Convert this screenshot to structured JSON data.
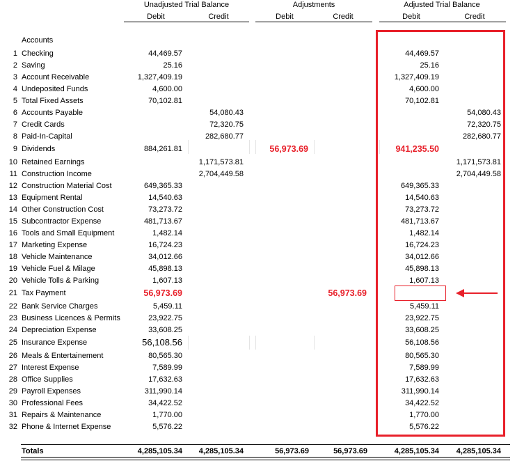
{
  "headers": {
    "unadjusted": "Unadjusted Trial Balance",
    "adjustments": "Adjustments",
    "adjusted": "Adjusted Trial Balance",
    "debit": "Debit",
    "credit": "Credit"
  },
  "accounts_label": "Accounts",
  "rows": [
    {
      "no": "1",
      "name": "Checking",
      "ud": "44,469.57",
      "uc": "",
      "adj_d": "",
      "adj_c": "",
      "ad": "44,469.57",
      "ac": ""
    },
    {
      "no": "2",
      "name": "Saving",
      "ud": "25.16",
      "uc": "",
      "adj_d": "",
      "adj_c": "",
      "ad": "25.16",
      "ac": ""
    },
    {
      "no": "3",
      "name": "Account Receivable",
      "ud": "1,327,409.19",
      "uc": "",
      "adj_d": "",
      "adj_c": "",
      "ad": "1,327,409.19",
      "ac": ""
    },
    {
      "no": "4",
      "name": "Undeposited Funds",
      "ud": "4,600.00",
      "uc": "",
      "adj_d": "",
      "adj_c": "",
      "ad": "4,600.00",
      "ac": ""
    },
    {
      "no": "5",
      "name": "Total Fixed Assets",
      "ud": "70,102.81",
      "uc": "",
      "adj_d": "",
      "adj_c": "",
      "ad": "70,102.81",
      "ac": ""
    },
    {
      "no": "6",
      "name": "Accounts Payable",
      "ud": "",
      "uc": "54,080.43",
      "adj_d": "",
      "adj_c": "",
      "ad": "",
      "ac": "54,080.43"
    },
    {
      "no": "7",
      "name": "Credit Cards",
      "ud": "",
      "uc": "72,320.75",
      "adj_d": "",
      "adj_c": "",
      "ad": "",
      "ac": "72,320.75"
    },
    {
      "no": "8",
      "name": "Paid-In-Capital",
      "ud": "",
      "uc": "282,680.77",
      "adj_d": "",
      "adj_c": "",
      "ad": "",
      "ac": "282,680.77"
    },
    {
      "no": "9",
      "name": "Dividends",
      "ud": "884,261.81",
      "uc": "",
      "adj_d": "56,973.69",
      "adj_c": "",
      "ad": "941,235.50",
      "ac": ""
    },
    {
      "no": "10",
      "name": "Retained Earnings",
      "ud": "",
      "uc": "1,171,573.81",
      "adj_d": "",
      "adj_c": "",
      "ad": "",
      "ac": "1,171,573.81"
    },
    {
      "no": "11",
      "name": "Construction Income",
      "ud": "",
      "uc": "2,704,449.58",
      "adj_d": "",
      "adj_c": "",
      "ad": "",
      "ac": "2,704,449.58"
    },
    {
      "no": "12",
      "name": "Construction Material Cost",
      "ud": "649,365.33",
      "uc": "",
      "adj_d": "",
      "adj_c": "",
      "ad": "649,365.33",
      "ac": ""
    },
    {
      "no": "13",
      "name": "Equipment Rental",
      "ud": "14,540.63",
      "uc": "",
      "adj_d": "",
      "adj_c": "",
      "ad": "14,540.63",
      "ac": ""
    },
    {
      "no": "14",
      "name": "Other Construction Cost",
      "ud": "73,273.72",
      "uc": "",
      "adj_d": "",
      "adj_c": "",
      "ad": "73,273.72",
      "ac": ""
    },
    {
      "no": "15",
      "name": "Subcontractor Expense",
      "ud": "481,713.67",
      "uc": "",
      "adj_d": "",
      "adj_c": "",
      "ad": "481,713.67",
      "ac": ""
    },
    {
      "no": "16",
      "name": "Tools and Small Equipment",
      "ud": "1,482.14",
      "uc": "",
      "adj_d": "",
      "adj_c": "",
      "ad": "1,482.14",
      "ac": ""
    },
    {
      "no": "17",
      "name": "Marketing Expense",
      "ud": "16,724.23",
      "uc": "",
      "adj_d": "",
      "adj_c": "",
      "ad": "16,724.23",
      "ac": ""
    },
    {
      "no": "18",
      "name": "Vehicle Maintenance",
      "ud": "34,012.66",
      "uc": "",
      "adj_d": "",
      "adj_c": "",
      "ad": "34,012.66",
      "ac": ""
    },
    {
      "no": "19",
      "name": "Vehicle Fuel & Milage",
      "ud": "45,898.13",
      "uc": "",
      "adj_d": "",
      "adj_c": "",
      "ad": "45,898.13",
      "ac": ""
    },
    {
      "no": "20",
      "name": "Vehicle Tolls & Parking",
      "ud": "1,607.13",
      "uc": "",
      "adj_d": "",
      "adj_c": "",
      "ad": "1,607.13",
      "ac": ""
    },
    {
      "no": "21",
      "name": "Tax Payment",
      "ud": "56,973.69",
      "uc": "",
      "adj_d": "",
      "adj_c": "56,973.69",
      "ad": "",
      "ac": ""
    },
    {
      "no": "22",
      "name": "Bank Service Charges",
      "ud": "5,459.11",
      "uc": "",
      "adj_d": "",
      "adj_c": "",
      "ad": "5,459.11",
      "ac": ""
    },
    {
      "no": "23",
      "name": "Business Licences & Permits",
      "ud": "23,922.75",
      "uc": "",
      "adj_d": "",
      "adj_c": "",
      "ad": "23,922.75",
      "ac": ""
    },
    {
      "no": "24",
      "name": "Depreciation Expense",
      "ud": "33,608.25",
      "uc": "",
      "adj_d": "",
      "adj_c": "",
      "ad": "33,608.25",
      "ac": ""
    },
    {
      "no": "25",
      "name": "Insurance Expense",
      "ud": "56,108.56",
      "uc": "",
      "adj_d": "",
      "adj_c": "",
      "ad": "56,108.56",
      "ac": ""
    },
    {
      "no": "26",
      "name": "Meals & Entertainement",
      "ud": "80,565.30",
      "uc": "",
      "adj_d": "",
      "adj_c": "",
      "ad": "80,565.30",
      "ac": ""
    },
    {
      "no": "27",
      "name": "Interest Expense",
      "ud": "7,589.99",
      "uc": "",
      "adj_d": "",
      "adj_c": "",
      "ad": "7,589.99",
      "ac": ""
    },
    {
      "no": "28",
      "name": "Office Supplies",
      "ud": "17,632.63",
      "uc": "",
      "adj_d": "",
      "adj_c": "",
      "ad": "17,632.63",
      "ac": ""
    },
    {
      "no": "29",
      "name": "Payroll Expenses",
      "ud": "311,990.14",
      "uc": "",
      "adj_d": "",
      "adj_c": "",
      "ad": "311,990.14",
      "ac": ""
    },
    {
      "no": "30",
      "name": "Professional Fees",
      "ud": "34,422.52",
      "uc": "",
      "adj_d": "",
      "adj_c": "",
      "ad": "34,422.52",
      "ac": ""
    },
    {
      "no": "31",
      "name": "Repairs & Maintenance",
      "ud": "1,770.00",
      "uc": "",
      "adj_d": "",
      "adj_c": "",
      "ad": "1,770.00",
      "ac": ""
    },
    {
      "no": "32",
      "name": "Phone & Internet Expense",
      "ud": "5,576.22",
      "uc": "",
      "adj_d": "",
      "adj_c": "",
      "ad": "5,576.22",
      "ac": ""
    }
  ],
  "totals": {
    "label": "Totals",
    "ud": "4,285,105.34",
    "uc": "4,285,105.34",
    "adj_d": "56,973.69",
    "adj_c": "56,973.69",
    "ad": "4,285,105.34",
    "ac": "4,285,105.34"
  },
  "colors": {
    "highlight": "#e8202a"
  }
}
